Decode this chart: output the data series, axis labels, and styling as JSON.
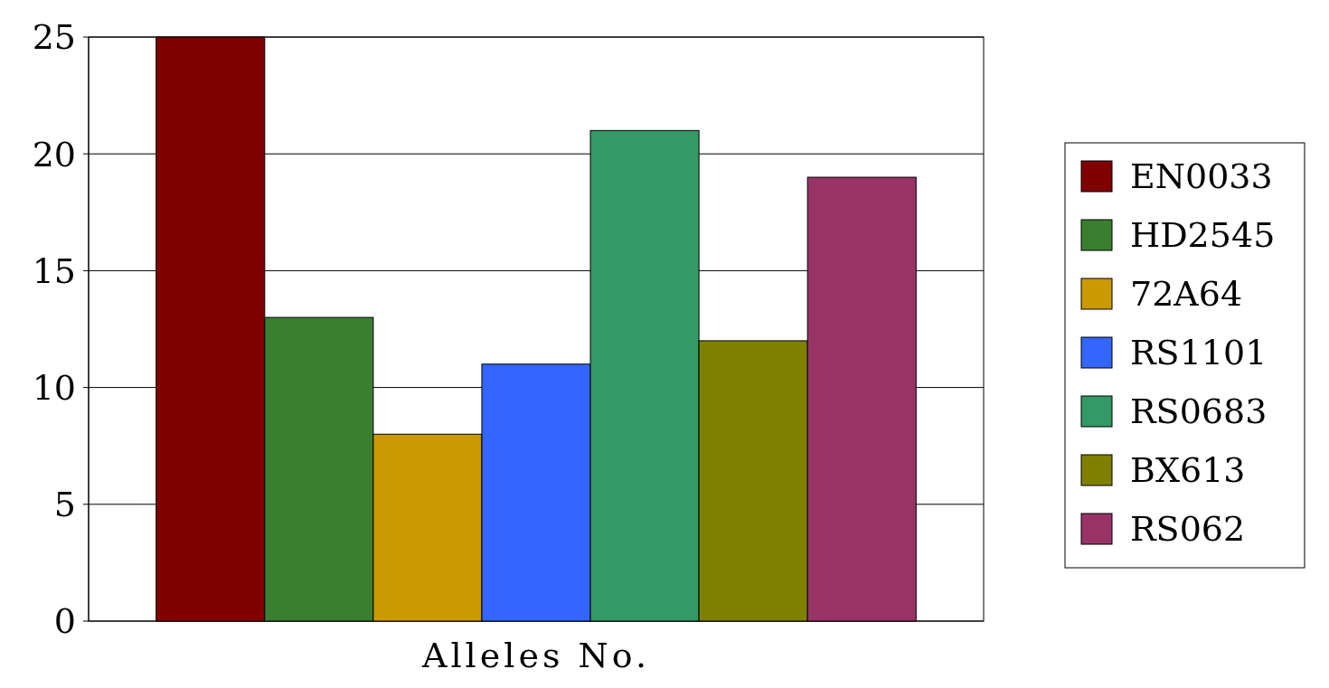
{
  "chart_data": {
    "type": "bar",
    "xlabel": "Alleles No.",
    "categories": [
      null
    ],
    "series": [
      {
        "name": "EN0033",
        "color": "#800000",
        "values": [
          25
        ]
      },
      {
        "name": "HD2545",
        "color": "#3a7f2f",
        "values": [
          13
        ]
      },
      {
        "name": "72A64",
        "color": "#cc9900",
        "values": [
          8
        ]
      },
      {
        "name": "RS1101",
        "color": "#3366ff",
        "values": [
          11
        ]
      },
      {
        "name": "RS0683",
        "color": "#339966",
        "values": [
          21
        ]
      },
      {
        "name": "BX613",
        "color": "#808000",
        "values": [
          12
        ]
      },
      {
        "name": "RS062",
        "color": "#993366",
        "values": [
          19
        ]
      }
    ],
    "ylim": [
      0,
      25
    ],
    "yticks": [
      0,
      5,
      10,
      15,
      20,
      25
    ],
    "grid": "y",
    "legend": "right"
  }
}
